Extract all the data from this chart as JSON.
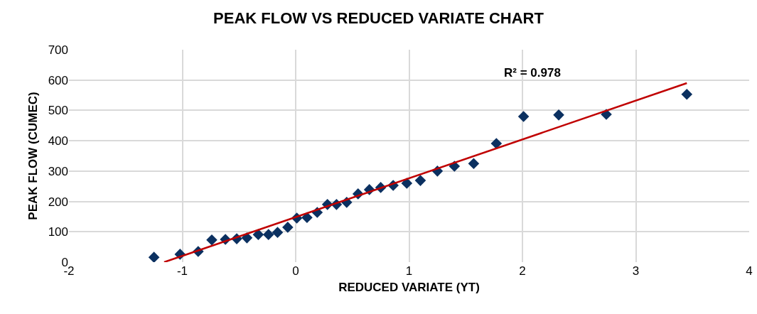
{
  "chart_data": {
    "type": "scatter",
    "title": "PEAK FLOW VS REDUCED VARIATE CHART",
    "xlabel": "REDUCED VARIATE (YT)",
    "ylabel": "PEAK FLOW (CUMEC)",
    "annotations": [
      "R² = 0.978"
    ],
    "xlim": [
      -2,
      4
    ],
    "xticks": [
      -2,
      -1,
      0,
      1,
      2,
      3,
      4
    ],
    "ylim": [
      0,
      700
    ],
    "yticks": [
      0,
      100,
      200,
      300,
      400,
      500,
      600,
      700
    ],
    "grid": true,
    "legend": false,
    "marker": "diamond",
    "series": [
      {
        "color": "#0b3060",
        "x": [
          -1.25,
          -1.02,
          -0.86,
          -0.74,
          -0.62,
          -0.52,
          -0.43,
          -0.33,
          -0.24,
          -0.16,
          -0.07,
          0.01,
          0.1,
          0.19,
          0.28,
          0.36,
          0.45,
          0.55,
          0.65,
          0.75,
          0.86,
          0.98,
          1.1,
          1.25,
          1.4,
          1.57,
          1.77,
          2.01,
          2.32,
          2.74,
          3.45
        ],
        "values": [
          16,
          26,
          35,
          73,
          75,
          77,
          80,
          91,
          91,
          98,
          115,
          145,
          147,
          164,
          190,
          190,
          197,
          225,
          239,
          246,
          253,
          260,
          269,
          300,
          316,
          325,
          391,
          480,
          485,
          487,
          553
        ]
      },
      {
        "type": "line",
        "color": "#c00000",
        "line_style": "solid",
        "marker": "none",
        "x": [
          -1.16,
          3.45
        ],
        "values": [
          0,
          590
        ]
      }
    ]
  }
}
